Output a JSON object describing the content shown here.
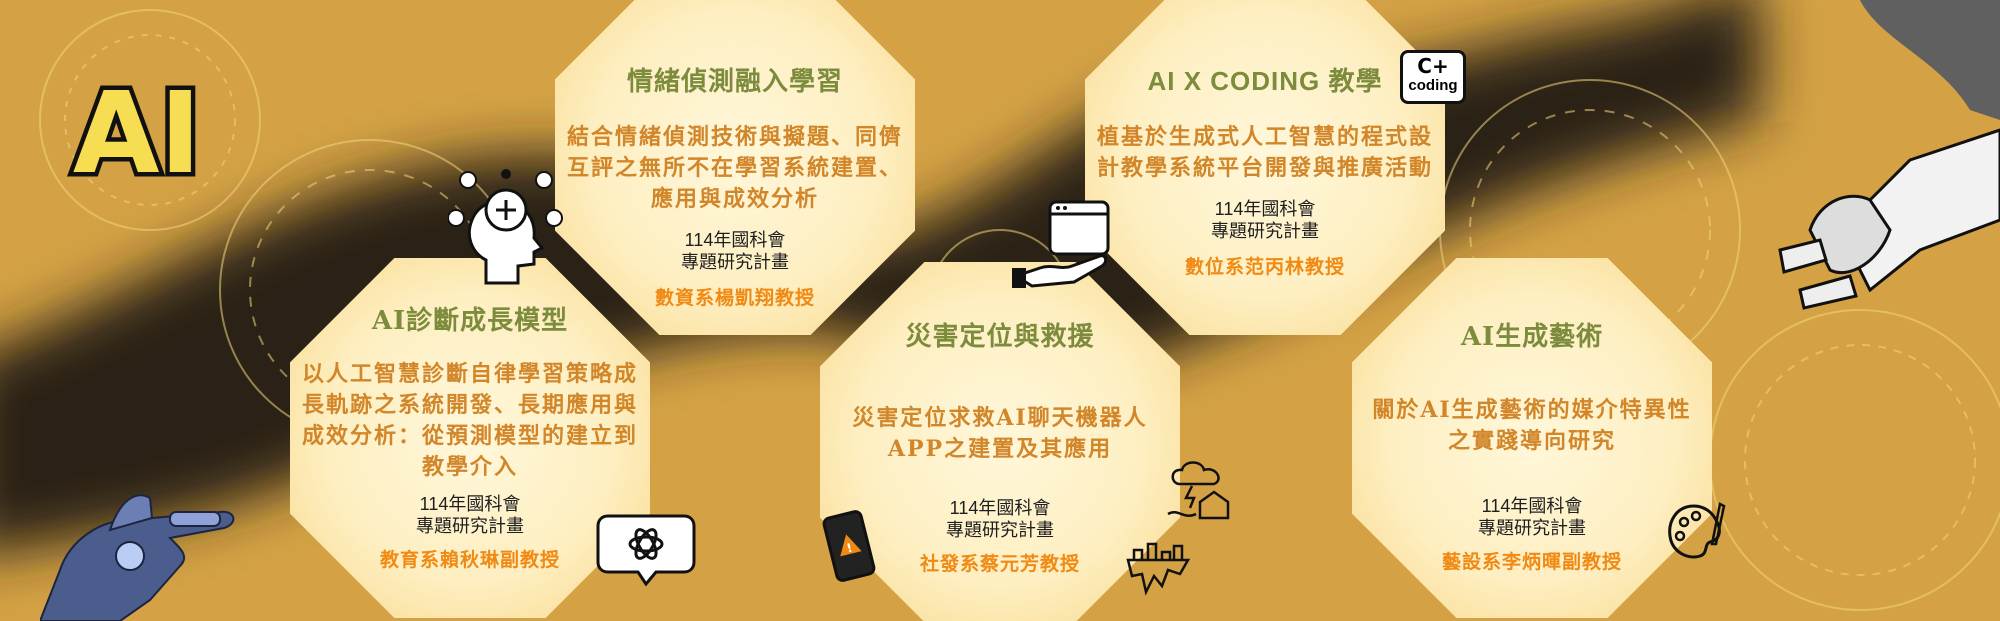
{
  "logo": {
    "text": "AI"
  },
  "cards": [
    {
      "id": "emotion",
      "title": "情緒偵測融入學習",
      "description": "結合情緒偵測技術與擬題、同儕互評之無所不在學習系統建置、應用與成效分析",
      "grant_line1": "114年國科會",
      "grant_line2": "專題研究計畫",
      "professor": "數資系楊凱翔教授"
    },
    {
      "id": "coding",
      "title": "AI X CODING 教學",
      "description": "植基於生成式人工智慧的程式設計教學系統平台開發與推廣活動",
      "grant_line1": "114年國科會",
      "grant_line2": "專題研究計畫",
      "professor": "數位系范丙林教授"
    },
    {
      "id": "diagnosis",
      "title": "AI診斷成長模型",
      "description": "以人工智慧診斷自律學習策略成長軌跡之系統開發、長期應用與成效分析：從預測模型的建立到教學介入",
      "grant_line1": "114年國科會",
      "grant_line2": "專題研究計畫",
      "professor": "教育系賴秋琳副教授"
    },
    {
      "id": "disaster",
      "title": "災害定位與救援",
      "description": "災害定位求救AI聊天機器人APP之建置及其應用",
      "grant_line1": "114年國科會",
      "grant_line2": "專題研究計畫",
      "professor": "社發系蔡元芳教授"
    },
    {
      "id": "art",
      "title": "AI生成藝術",
      "description": "關於AI生成藝術的媒介特異性之實踐導向研究",
      "grant_line1": "114年國科會",
      "grant_line2": "專題研究計畫",
      "professor": "藝設系李炳暉副教授"
    }
  ],
  "coding_badge": {
    "line1": "C+",
    "line2": "coding"
  },
  "colors": {
    "background": "#d4a245",
    "title_green": "#7d8b3d",
    "description_orange": "#d2862a",
    "professor_orange": "#f08a14"
  },
  "icons": [
    "brain-bulb-icon",
    "hand-screen-icon",
    "coding-badge-icon",
    "chatgpt-bubble-icon",
    "phone-alert-icon",
    "storm-house-icon",
    "earthquake-icon",
    "palette-icon",
    "robot-hand-left-icon",
    "robot-hand-right-icon"
  ]
}
